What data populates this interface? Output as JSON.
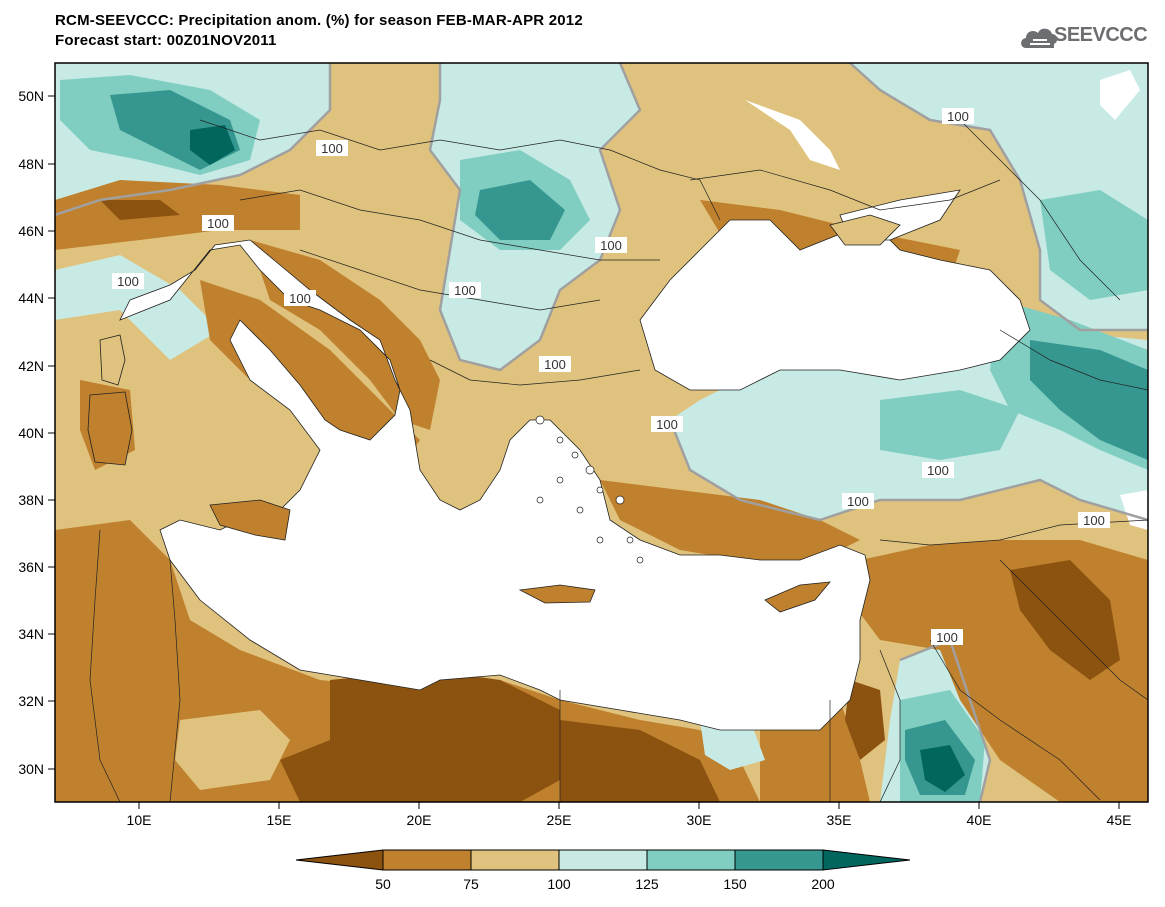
{
  "title": {
    "line1": "RCM-SEEVCCC: Precipitation anom. (%) for season FEB-MAR-APR 2012",
    "line2": "Forecast start: 00Z01NOV2011"
  },
  "logo": {
    "text": "SEEVCCC",
    "icon": "cloud-logo-icon"
  },
  "map": {
    "lat_labels": [
      "50N",
      "48N",
      "46N",
      "44N",
      "42N",
      "40N",
      "38N",
      "36N",
      "34N",
      "32N",
      "30N"
    ],
    "lon_labels": [
      "10E",
      "15E",
      "20E",
      "25E",
      "30E",
      "35E",
      "40E",
      "45E"
    ],
    "contour_labels": [
      "100",
      "100",
      "100",
      "100",
      "100",
      "100",
      "100",
      "100",
      "100",
      "100",
      "100",
      "100",
      "100"
    ],
    "colors": {
      "lt50": "#8c5210",
      "c50_75": "#bf812d",
      "c75_100": "#dfc27d",
      "c100_125": "#c7eae5",
      "c125_150": "#80cdc1",
      "c150_200": "#35978f",
      "gt200": "#01665e",
      "sea": "#ffffff",
      "contour": "#a0a0a0"
    }
  },
  "colorbar": {
    "labels": [
      "50",
      "75",
      "100",
      "125",
      "150",
      "200"
    ]
  }
}
